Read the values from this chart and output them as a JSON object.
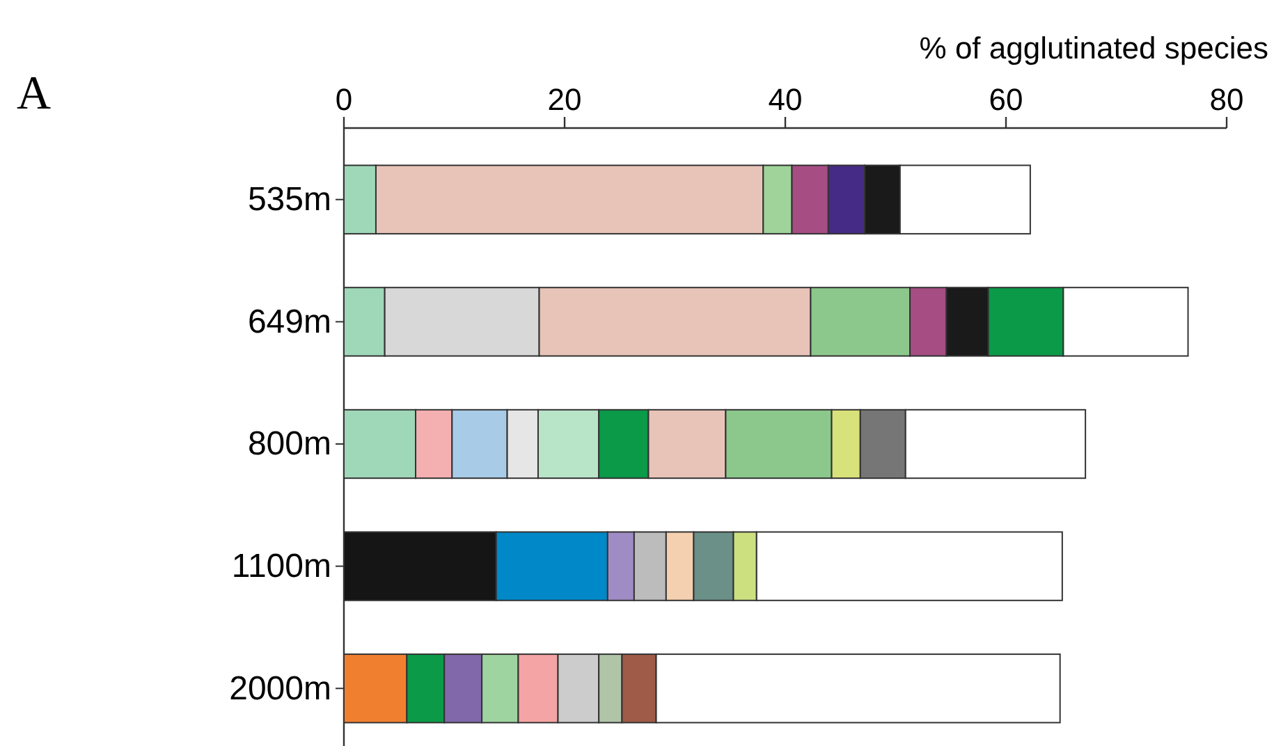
{
  "chart_data": {
    "type": "bar",
    "orientation": "horizontal",
    "stacked": true,
    "xlabel": "% of agglutinated species",
    "annotations": [
      "A"
    ],
    "categories": [
      "535m",
      "649m",
      "800m",
      "1100m",
      "2000m"
    ],
    "xlim": [
      0,
      80
    ],
    "xticks": [
      0,
      20,
      40,
      60,
      80
    ],
    "series": [
      {
        "values": [
          2.9,
          3.7,
          6.5,
          13.8,
          5.7
        ],
        "colors": [
          "#9fd8b8",
          "#9fd8b8",
          "#9fd8b8",
          "#151515",
          "#f08030"
        ]
      },
      {
        "values": [
          35.1,
          14.0,
          3.3,
          10.1,
          3.4
        ],
        "colors": [
          "#e8c4b8",
          "#d8d8d8",
          "#f4b0b0",
          "#0088c8",
          "#0a9a48"
        ]
      },
      {
        "values": [
          2.6,
          24.6,
          5.0,
          2.4,
          3.4
        ],
        "colors": [
          "#9fd39a",
          "#e8c4b8",
          "#a8cce8",
          "#a08cc4",
          "#8068aa"
        ]
      },
      {
        "values": [
          3.3,
          9.0,
          2.8,
          2.9,
          3.3
        ],
        "colors": [
          "#a64d84",
          "#8cc88c",
          "#e6e6e6",
          "#bcbcbc",
          "#9ed4a0"
        ]
      },
      {
        "values": [
          3.3,
          3.3,
          5.5,
          2.5,
          3.6
        ],
        "colors": [
          "#452a86",
          "#a64d84",
          "#b8e4c8",
          "#f4d0b0",
          "#f4a4a4"
        ]
      },
      {
        "values": [
          3.2,
          3.8,
          4.5,
          3.6,
          3.7
        ],
        "colors": [
          "#1a1a1a",
          "#1a1a1a",
          "#0a9a48",
          "#6a9088",
          "#cccccc"
        ]
      },
      {
        "values": [
          11.8,
          6.8,
          7.0,
          2.1,
          2.1
        ],
        "colors": [
          "#ffffff",
          "#0a9a48",
          "#e8c4b8",
          "#cce080",
          "#b0c4a8"
        ]
      },
      {
        "values": [
          null,
          11.3,
          9.6,
          27.7,
          3.1
        ],
        "colors": [
          null,
          "#ffffff",
          "#8cc88c",
          "#ffffff",
          "#a05a48"
        ]
      },
      {
        "values": [
          null,
          null,
          2.6,
          null,
          36.6
        ],
        "colors": [
          null,
          null,
          "#d8e27a",
          null,
          "#ffffff"
        ]
      },
      {
        "values": [
          null,
          null,
          4.1,
          null,
          null
        ],
        "colors": [
          null,
          null,
          "#767676",
          null,
          null
        ]
      },
      {
        "values": [
          null,
          null,
          16.3,
          null,
          null
        ],
        "colors": [
          null,
          null,
          "#ffffff",
          null,
          null
        ]
      }
    ]
  }
}
